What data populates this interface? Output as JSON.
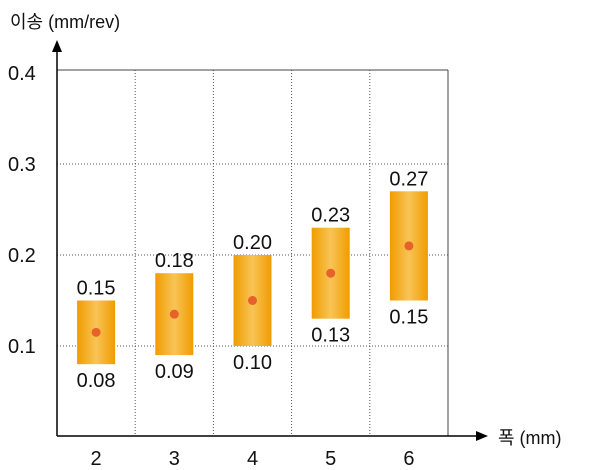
{
  "chart_data": {
    "type": "range-bar",
    "ylabel": "이송 (mm/rev)",
    "xlabel": "폭 (mm)",
    "categories": [
      "2",
      "3",
      "4",
      "5",
      "6"
    ],
    "y_ticks": [
      "0.1",
      "0.2",
      "0.3",
      "0.4"
    ],
    "ylim": [
      0,
      0.4
    ],
    "grid": true,
    "series": [
      {
        "low": [
          0.08,
          0.09,
          0.1,
          0.13,
          0.15
        ],
        "high": [
          0.15,
          0.18,
          0.2,
          0.23,
          0.27
        ],
        "mid": [
          0.115,
          0.135,
          0.15,
          0.18,
          0.21
        ]
      }
    ],
    "low_labels": [
      "0.08",
      "0.09",
      "0.10",
      "0.13",
      "0.15"
    ],
    "high_labels": [
      "0.15",
      "0.18",
      "0.20",
      "0.23",
      "0.27"
    ],
    "colors": {
      "bar_edge": "#f0a000",
      "bar_center": "#f8c050",
      "dot": "#e8602a",
      "grid": "#555555",
      "axis": "#000000"
    }
  }
}
